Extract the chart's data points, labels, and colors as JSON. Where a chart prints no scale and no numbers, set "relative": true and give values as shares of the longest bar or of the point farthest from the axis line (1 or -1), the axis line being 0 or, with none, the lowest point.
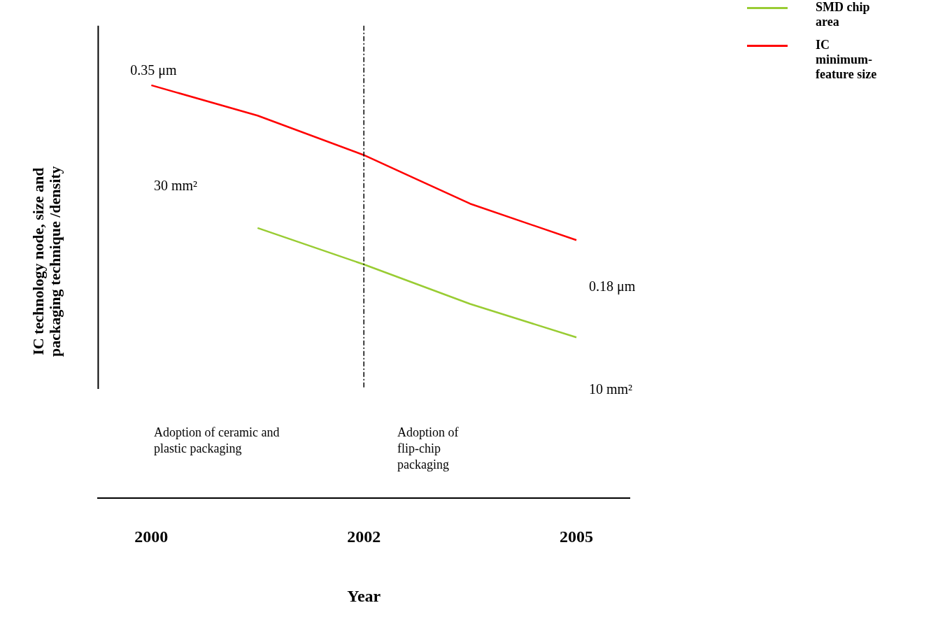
{
  "chart_data": {
    "type": "line",
    "relative": true,
    "xlabel": "Year",
    "ylabel": "IC technology node, size and packaging technique /density",
    "categories": [
      "2000",
      null,
      "2002",
      null,
      "2005"
    ],
    "series": [
      {
        "name": "SMD chip area",
        "color": "#99cc33",
        "values": [
          null,
          0.53,
          0.41,
          0.28,
          0.17
        ]
      },
      {
        "name": "IC minimum-feature size",
        "color": "#ff0000",
        "values": [
          1,
          0.9,
          0.77,
          0.61,
          0.49
        ]
      }
    ],
    "ref_lines": [
      {
        "axis": "x",
        "value": "2002",
        "color": "#000000",
        "line_style": "dashed"
      }
    ],
    "annotations": [
      {
        "text": "0.35 μm",
        "x": "2000",
        "y": 1
      },
      "30 mm²",
      "0.18 μm",
      "10 mm²",
      "Adoption of ceramic and plastic packaging",
      "Adoption of flip-chip packaging"
    ],
    "legend": "top right",
    "grid": false,
    "marker": "none",
    "line_style": "solid"
  }
}
